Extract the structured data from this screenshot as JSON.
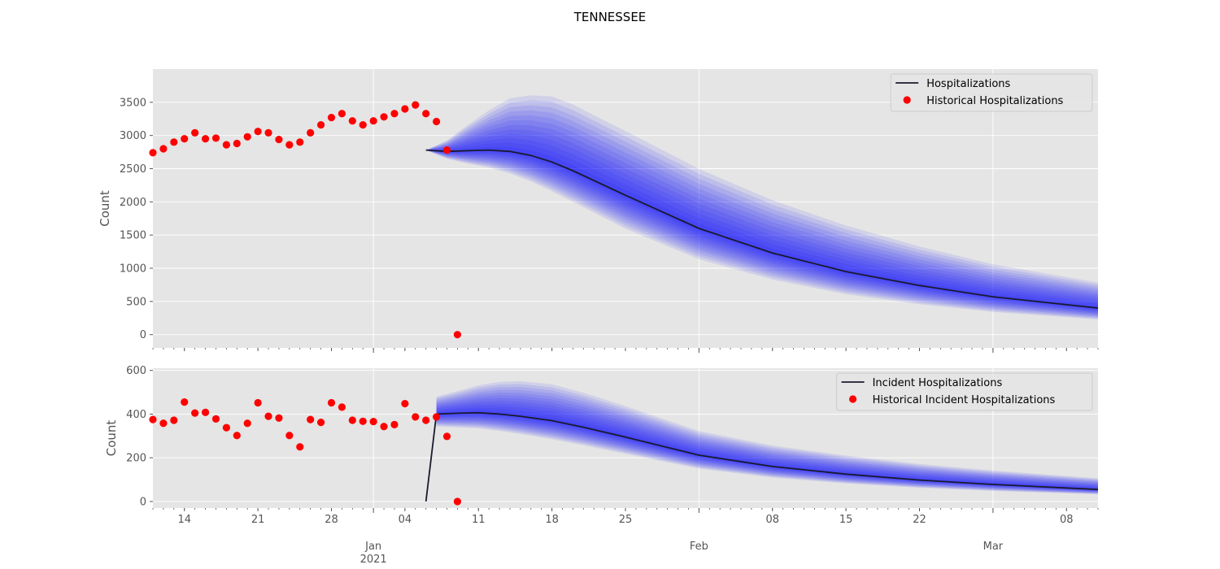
{
  "figure": {
    "title": "TENNESSEE"
  },
  "colors": {
    "panel_bg": "#e5e5e5",
    "grid": "#ffffff",
    "band": "#0000ff",
    "median_line": "#1a1a2e",
    "observed": "#ff0000",
    "tick_text": "#555555"
  },
  "x_axis": {
    "range": [
      "2020-12-11",
      "2021-03-11"
    ],
    "major_ticks": [
      {
        "date": "2021-01-01",
        "label": "Jan",
        "sublabel": "2021"
      },
      {
        "date": "2021-02-01",
        "label": "Feb",
        "sublabel": ""
      },
      {
        "date": "2021-03-01",
        "label": "Mar",
        "sublabel": ""
      }
    ],
    "minor_ticks": [
      {
        "date": "2020-12-14",
        "label": "14"
      },
      {
        "date": "2020-12-21",
        "label": "21"
      },
      {
        "date": "2020-12-28",
        "label": "28"
      },
      {
        "date": "2021-01-04",
        "label": "04"
      },
      {
        "date": "2021-01-11",
        "label": "11"
      },
      {
        "date": "2021-01-18",
        "label": "18"
      },
      {
        "date": "2021-01-25",
        "label": "25"
      },
      {
        "date": "2021-02-08",
        "label": "08"
      },
      {
        "date": "2021-02-15",
        "label": "15"
      },
      {
        "date": "2021-02-22",
        "label": "22"
      },
      {
        "date": "2021-03-08",
        "label": "08"
      }
    ]
  },
  "chart_data": [
    {
      "type": "line",
      "ylabel": "Count",
      "ylim": [
        -200,
        4000
      ],
      "yticks": [
        0,
        500,
        1000,
        1500,
        2000,
        2500,
        3000,
        3500
      ],
      "grid": true,
      "legend_position": "top-right",
      "legend": [
        "Hospitalizations",
        "Historical Hospitalizations"
      ],
      "observed": {
        "name": "Historical Hospitalizations",
        "points": [
          [
            "2020-12-11",
            2740
          ],
          [
            "2020-12-12",
            2800
          ],
          [
            "2020-12-13",
            2900
          ],
          [
            "2020-12-14",
            2950
          ],
          [
            "2020-12-15",
            3040
          ],
          [
            "2020-12-16",
            2950
          ],
          [
            "2020-12-17",
            2960
          ],
          [
            "2020-12-18",
            2860
          ],
          [
            "2020-12-19",
            2880
          ],
          [
            "2020-12-20",
            2980
          ],
          [
            "2020-12-21",
            3060
          ],
          [
            "2020-12-22",
            3040
          ],
          [
            "2020-12-23",
            2940
          ],
          [
            "2020-12-24",
            2860
          ],
          [
            "2020-12-25",
            2900
          ],
          [
            "2020-12-26",
            3040
          ],
          [
            "2020-12-27",
            3160
          ],
          [
            "2020-12-28",
            3270
          ],
          [
            "2020-12-29",
            3330
          ],
          [
            "2020-12-30",
            3220
          ],
          [
            "2020-12-31",
            3160
          ],
          [
            "2021-01-01",
            3220
          ],
          [
            "2021-01-02",
            3280
          ],
          [
            "2021-01-03",
            3330
          ],
          [
            "2021-01-04",
            3400
          ],
          [
            "2021-01-05",
            3460
          ],
          [
            "2021-01-06",
            3330
          ],
          [
            "2021-01-07",
            3210
          ],
          [
            "2021-01-08",
            2780
          ],
          [
            "2021-01-09",
            0
          ]
        ]
      },
      "median": {
        "name": "Hospitalizations",
        "points": [
          [
            "2021-01-06",
            2780
          ],
          [
            "2021-01-08",
            2760
          ],
          [
            "2021-01-10",
            2770
          ],
          [
            "2021-01-12",
            2780
          ],
          [
            "2021-01-14",
            2760
          ],
          [
            "2021-01-16",
            2700
          ],
          [
            "2021-01-18",
            2600
          ],
          [
            "2021-01-20",
            2470
          ],
          [
            "2021-01-25",
            2100
          ],
          [
            "2021-02-01",
            1600
          ],
          [
            "2021-02-08",
            1230
          ],
          [
            "2021-02-15",
            950
          ],
          [
            "2021-02-22",
            740
          ],
          [
            "2021-03-01",
            570
          ],
          [
            "2021-03-11",
            400
          ]
        ]
      },
      "band_scale": {
        "dates": [
          "2021-01-06",
          "2021-01-08",
          "2021-01-10",
          "2021-01-14",
          "2021-01-18",
          "2021-01-25",
          "2021-02-01",
          "2021-02-15",
          "2021-03-01",
          "2021-03-11"
        ],
        "upper": [
          1.0,
          1.06,
          1.14,
          1.29,
          1.38,
          1.46,
          1.56,
          1.73,
          1.86,
          1.96
        ],
        "lower": [
          1.0,
          0.96,
          0.93,
          0.88,
          0.83,
          0.76,
          0.71,
          0.64,
          0.6,
          0.57
        ]
      }
    },
    {
      "type": "line",
      "ylabel": "Count",
      "ylim": [
        -30,
        610
      ],
      "yticks": [
        0,
        200,
        400,
        600
      ],
      "grid": true,
      "legend_position": "top-right",
      "legend": [
        "Incident Hospitalizations",
        "Historical Incident Hospitalizations"
      ],
      "observed": {
        "name": "Historical Incident Hospitalizations",
        "points": [
          [
            "2020-12-11",
            375
          ],
          [
            "2020-12-12",
            358
          ],
          [
            "2020-12-13",
            372
          ],
          [
            "2020-12-14",
            455
          ],
          [
            "2020-12-15",
            405
          ],
          [
            "2020-12-16",
            408
          ],
          [
            "2020-12-17",
            378
          ],
          [
            "2020-12-18",
            338
          ],
          [
            "2020-12-19",
            302
          ],
          [
            "2020-12-20",
            358
          ],
          [
            "2020-12-21",
            452
          ],
          [
            "2020-12-22",
            390
          ],
          [
            "2020-12-23",
            382
          ],
          [
            "2020-12-24",
            302
          ],
          [
            "2020-12-25",
            250
          ],
          [
            "2020-12-26",
            375
          ],
          [
            "2020-12-27",
            362
          ],
          [
            "2020-12-28",
            452
          ],
          [
            "2020-12-29",
            432
          ],
          [
            "2020-12-30",
            372
          ],
          [
            "2020-12-31",
            367
          ],
          [
            "2021-01-01",
            366
          ],
          [
            "2021-01-02",
            343
          ],
          [
            "2021-01-03",
            352
          ],
          [
            "2021-01-04",
            448
          ],
          [
            "2021-01-05",
            387
          ],
          [
            "2021-01-06",
            372
          ],
          [
            "2021-01-07",
            387
          ],
          [
            "2021-01-08",
            298
          ],
          [
            "2021-01-09",
            0
          ]
        ]
      },
      "median": {
        "name": "Incident Hospitalizations",
        "points": [
          [
            "2021-01-06",
            0
          ],
          [
            "2021-01-07",
            400
          ],
          [
            "2021-01-09",
            404
          ],
          [
            "2021-01-11",
            406
          ],
          [
            "2021-01-13",
            400
          ],
          [
            "2021-01-15",
            390
          ],
          [
            "2021-01-18",
            370
          ],
          [
            "2021-01-21",
            340
          ],
          [
            "2021-01-25",
            295
          ],
          [
            "2021-02-01",
            212
          ],
          [
            "2021-02-08",
            160
          ],
          [
            "2021-02-15",
            125
          ],
          [
            "2021-02-22",
            98
          ],
          [
            "2021-03-01",
            78
          ],
          [
            "2021-03-11",
            55
          ]
        ]
      },
      "band_scale": {
        "dates": [
          "2021-01-07",
          "2021-01-09",
          "2021-01-14",
          "2021-01-18",
          "2021-01-25",
          "2021-02-01",
          "2021-02-15",
          "2021-03-01",
          "2021-03-11"
        ],
        "upper": [
          1.2,
          1.25,
          1.4,
          1.45,
          1.48,
          1.52,
          1.68,
          1.82,
          1.93
        ],
        "lower": [
          0.86,
          0.84,
          0.8,
          0.77,
          0.74,
          0.71,
          0.66,
          0.62,
          0.6
        ]
      }
    }
  ]
}
